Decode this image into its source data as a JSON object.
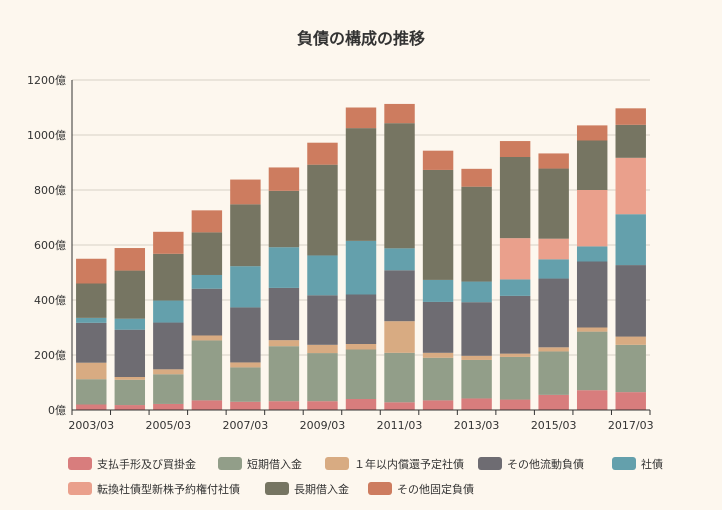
{
  "chart_data": {
    "type": "bar",
    "stacked": true,
    "title": "負債の構成の推移",
    "xlabel": "",
    "ylabel": "",
    "ylim": [
      0,
      1200
    ],
    "y_ticks": [
      "0億",
      "200億",
      "400億",
      "600億",
      "800億",
      "1000億",
      "1200億"
    ],
    "y_tick_values": [
      0,
      200,
      400,
      600,
      800,
      1000,
      1200
    ],
    "grid": "horizontal",
    "legend_position": "bottom",
    "categories": [
      "2003/03",
      "2004/03",
      "2005/03",
      "2006/03",
      "2007/03",
      "2008/03",
      "2009/03",
      "2010/03",
      "2011/03",
      "2012/03",
      "2013/03",
      "2014/03",
      "2015/03",
      "2016/03",
      "2017/03"
    ],
    "x_tick_labels": [
      "2003/03",
      "",
      "2005/03",
      "",
      "2007/03",
      "",
      "2009/03",
      "",
      "2011/03",
      "",
      "2013/03",
      "",
      "2015/03",
      "",
      "2017/03"
    ],
    "series": [
      {
        "name": "支払手形及び買掛金",
        "color": "#d87d7d",
        "values": [
          20,
          18,
          22,
          35,
          30,
          32,
          32,
          40,
          28,
          35,
          42,
          38,
          55,
          72,
          65
        ]
      },
      {
        "name": "短期借入金",
        "color": "#929e89",
        "values": [
          92,
          92,
          108,
          218,
          125,
          200,
          175,
          180,
          180,
          155,
          140,
          155,
          158,
          213,
          172
        ]
      },
      {
        "name": "１年以内償還予定社債",
        "color": "#d8ab82",
        "values": [
          60,
          10,
          18,
          18,
          18,
          22,
          30,
          20,
          115,
          18,
          15,
          12,
          15,
          15,
          30
        ]
      },
      {
        "name": "その他流動負債",
        "color": "#6e6c72",
        "values": [
          145,
          172,
          170,
          170,
          200,
          190,
          180,
          180,
          185,
          185,
          195,
          210,
          250,
          240,
          260
        ]
      },
      {
        "name": "社債",
        "color": "#64a0ac",
        "values": [
          18,
          40,
          80,
          50,
          150,
          148,
          145,
          195,
          80,
          80,
          75,
          60,
          70,
          55,
          185
        ]
      },
      {
        "name": "転換社債型新株予約権付社債",
        "color": "#eaa08c",
        "values": [
          0,
          0,
          0,
          0,
          0,
          0,
          0,
          0,
          0,
          0,
          0,
          150,
          75,
          205,
          205
        ]
      },
      {
        "name": "長期借入金",
        "color": "#767562",
        "values": [
          125,
          175,
          170,
          155,
          225,
          205,
          330,
          410,
          455,
          400,
          345,
          295,
          255,
          180,
          120
        ]
      },
      {
        "name": "その他固定負債",
        "color": "#cd7c5f",
        "values": [
          90,
          82,
          80,
          80,
          90,
          85,
          80,
          75,
          70,
          70,
          65,
          58,
          55,
          55,
          60
        ]
      }
    ]
  }
}
